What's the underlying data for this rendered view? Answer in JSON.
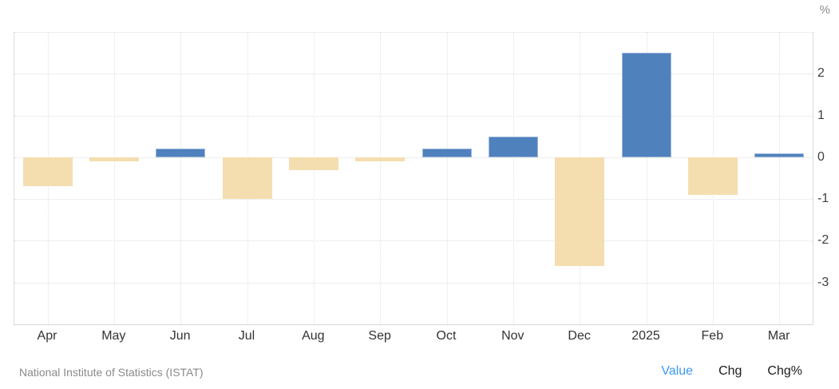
{
  "header": {
    "unit_label": "%"
  },
  "footer": {
    "source": "National Institute of Statistics (ISTAT)",
    "links": [
      {
        "label": "Value",
        "active": true
      },
      {
        "label": "Chg",
        "active": false
      },
      {
        "label": "Chg%",
        "active": false
      }
    ]
  },
  "colors": {
    "positive_bar": "#4f81bd",
    "positive_bar_border": "#9db8d9",
    "negative_bar": "#f4deb0",
    "grid": "#dedede",
    "axis_text": "#404040",
    "x_label_text": "#333333",
    "source_text": "#8a8a8a",
    "active_link": "#3b99f0",
    "link_text": "#1b1b1b"
  },
  "chart_data": {
    "type": "bar",
    "title": "",
    "xlabel": "",
    "ylabel": "%",
    "categories": [
      "Apr",
      "May",
      "Jun",
      "Jul",
      "Aug",
      "Sep",
      "Oct",
      "Nov",
      "Dec",
      "2025",
      "Feb",
      "Mar"
    ],
    "values": [
      -0.7,
      -0.1,
      0.2,
      -1.0,
      -0.3,
      -0.1,
      0.2,
      0.5,
      -2.6,
      2.5,
      -0.9,
      0.1
    ],
    "unit": "%",
    "ylim": [
      -4,
      3
    ],
    "y_tick_labels": [
      2,
      1,
      0,
      -1,
      -2,
      -3
    ],
    "gridline_values": [
      3,
      2,
      1,
      0,
      -1,
      -2,
      -3
    ],
    "grid": true,
    "legend": "none",
    "bar_color_positive": "#4f81bd",
    "bar_color_negative": "#f4deb0",
    "source": "National Institute of Statistics (ISTAT)"
  }
}
